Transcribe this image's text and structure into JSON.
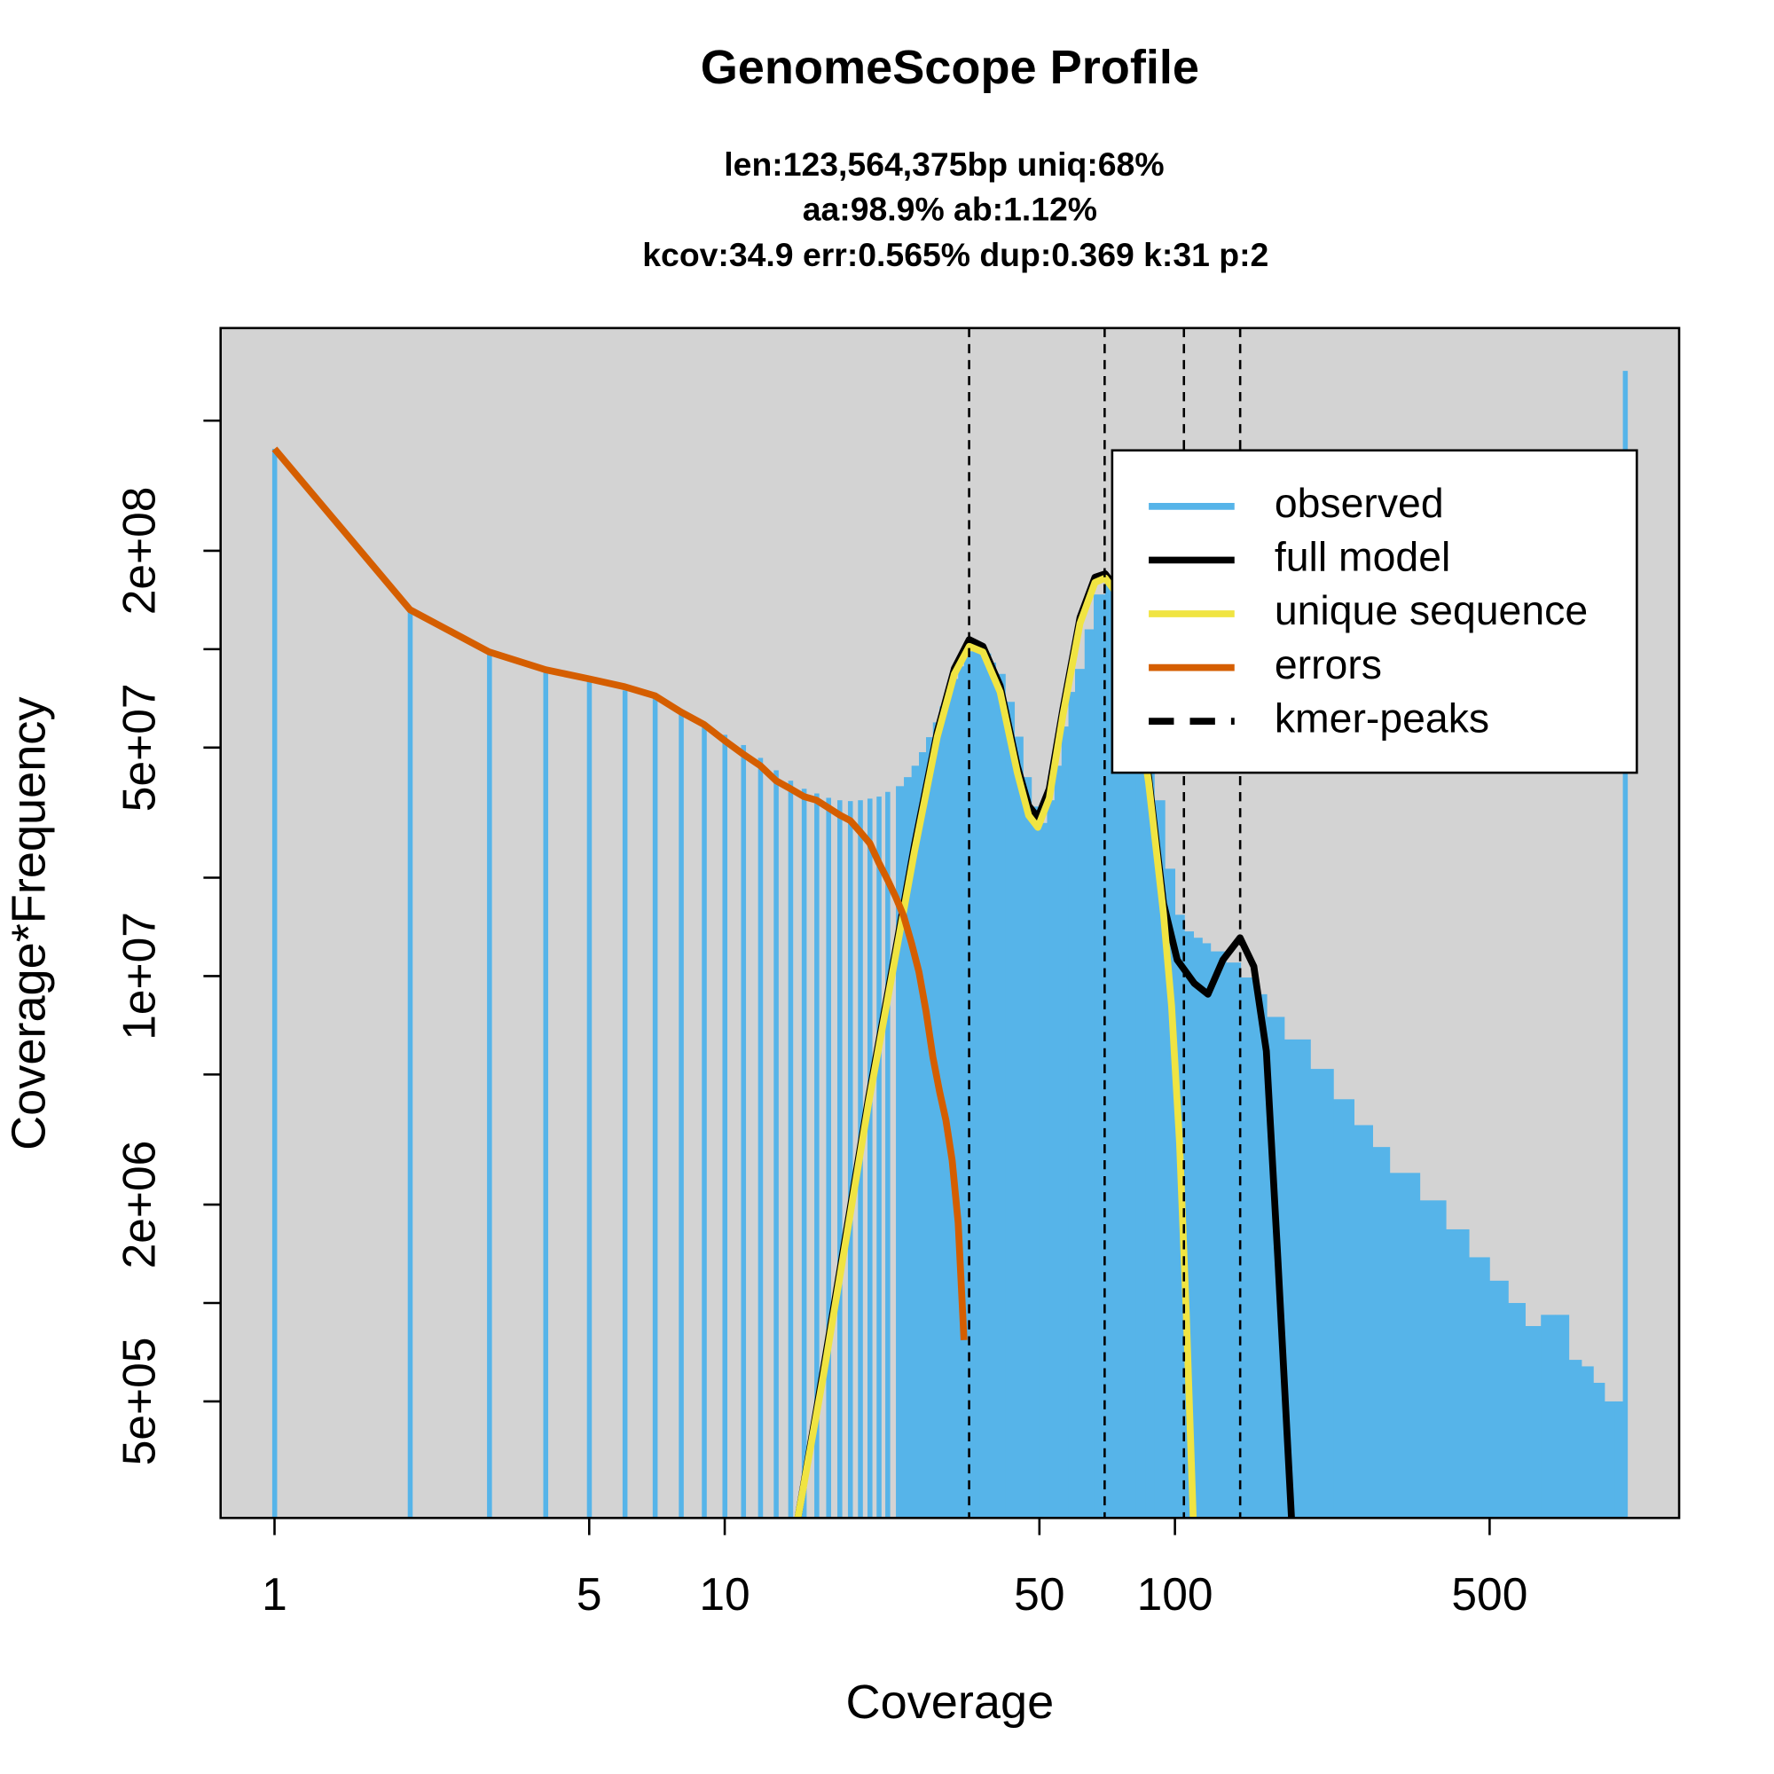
{
  "chart_data": {
    "type": "genomescope",
    "title": "GenomeScope Profile",
    "subtitle": [
      "len:123,564,375bp uniq:68%",
      "aa:98.9% ab:1.12%",
      "kcov:34.9 err:0.565%  dup:0.369  k:31 p:2"
    ],
    "xlabel": "Coverage",
    "ylabel": "Coverage*Frequency",
    "xscale": "log",
    "yscale": "log",
    "xlim": [
      0.759,
      1318
    ],
    "ylim": [
      220000,
      960000000
    ],
    "xticks": [
      1,
      5,
      10,
      50,
      100,
      500
    ],
    "yticks": [
      {
        "value": 500000,
        "label": "5e+05"
      },
      {
        "value": 2000000,
        "label": "2e+06"
      },
      {
        "value": 10000000,
        "label": "1e+07"
      },
      {
        "value": 50000000,
        "label": "5e+07"
      },
      {
        "value": 200000000,
        "label": "2e+08"
      }
    ],
    "yticks_unlabeled": [
      1000000,
      5000000,
      20000000,
      100000000,
      500000000
    ],
    "grid": false,
    "background": "#d3d3d3",
    "legend": "topright",
    "series": [
      {
        "name": "observed",
        "style": "bars",
        "color": "#56b4e9",
        "x": [
          1,
          2,
          3,
          4,
          5,
          6,
          7,
          8,
          9,
          10,
          11,
          12,
          13,
          14,
          15,
          16,
          17,
          18,
          19,
          20,
          21,
          22,
          23,
          24,
          25,
          26,
          27,
          28,
          29,
          30,
          31,
          32,
          33,
          34,
          35,
          36,
          37,
          38,
          39,
          40,
          42,
          44,
          46,
          48,
          50,
          52,
          54,
          56,
          58,
          60,
          63,
          66,
          70,
          74,
          78,
          82,
          86,
          90,
          95,
          100,
          105,
          110,
          115,
          120,
          130,
          140,
          150,
          160,
          175,
          200,
          225,
          250,
          275,
          300,
          350,
          400,
          450,
          500,
          550,
          600,
          650,
          700,
          750,
          800,
          850,
          900,
          950,
          999,
          1000
        ],
        "values": [
          410000000,
          132000000,
          98000000,
          86500000,
          79800000,
          74800000,
          70800000,
          64200000,
          59700000,
          54700000,
          50900000,
          46500000,
          42600000,
          39600000,
          37400000,
          36200000,
          35100000,
          34500000,
          34300000,
          34500000,
          34900000,
          35400000,
          36600000,
          38100000,
          40600000,
          44000000,
          48400000,
          53800000,
          59700000,
          66800000,
          73600000,
          81100000,
          88600000,
          94600000,
          98500000,
          100000000,
          100000000,
          97000000,
          91000000,
          84000000,
          69000000,
          54000000,
          40600000,
          33000000,
          29400000,
          34500000,
          44000000,
          58000000,
          74000000,
          87000000,
          115000000,
          147000000,
          166000000,
          162000000,
          130000000,
          87000000,
          56000000,
          34500000,
          21300000,
          15400000,
          13700000,
          13100000,
          12600000,
          11900000,
          11000000,
          9900000,
          8800000,
          7500000,
          6400000,
          5200000,
          4200000,
          3500000,
          3000000,
          2500000,
          2060000,
          1680000,
          1380000,
          1170000,
          1000000,
          850000,
          920000,
          920000,
          670000,
          640000,
          570000,
          500000,
          500000,
          410000,
          710000000
        ]
      },
      {
        "name": "full model",
        "style": "line",
        "color": "#000000",
        "x": [
          14.54,
          16.53,
          18.58,
          20.88,
          23.48,
          26.38,
          29.66,
          32.37,
          34.93,
          37.46,
          40.9,
          44.64,
          47.33,
          49.6,
          52.59,
          56.41,
          61.55,
          66.43,
          70.01,
          74.23,
          80.09,
          87.41,
          94.32,
          101.2,
          110.4,
          118.4,
          127.8,
          139.5,
          149.7,
          159.6,
          169.2,
          181.5
        ],
        "values": [
          220000,
          617000,
          1620000,
          4260000,
          10300000,
          25100000,
          56000000,
          87300000,
          107000000,
          102000000,
          77300000,
          44000000,
          33200000,
          30600000,
          37400000,
          65800000,
          125000000,
          166000000,
          170000000,
          153000000,
          90800000,
          40600000,
          16700000,
          11200000,
          9500000,
          8800000,
          11200000,
          13100000,
          10700000,
          5900000,
          1380000,
          220000
        ]
      },
      {
        "name": "unique sequence",
        "style": "line",
        "color": "#f0e442",
        "x": [
          14.54,
          16.53,
          18.58,
          20.88,
          23.48,
          26.38,
          29.66,
          32.37,
          34.93,
          37.46,
          40.9,
          44.64,
          47.33,
          49.6,
          52.59,
          56.41,
          61.55,
          66.43,
          70.01,
          74.23,
          80.09,
          87.41,
          94.32,
          98.3,
          102.4,
          106,
          109.8
        ],
        "values": [
          220000,
          590000,
          1550000,
          4100000,
          9900000,
          24000000,
          54000000,
          84000000,
          102000000,
          98000000,
          74000000,
          42000000,
          31000000,
          28500000,
          35000000,
          63000000,
          120000000,
          160000000,
          165000000,
          148000000,
          88000000,
          39000000,
          15500000,
          8100000,
          3090000,
          920000,
          220000
        ]
      },
      {
        "name": "errors",
        "style": "line",
        "color": "#d55e00",
        "x": [
          1,
          2,
          3,
          4,
          5,
          6,
          7,
          8,
          9,
          10,
          11,
          12,
          13,
          14,
          15,
          16,
          17,
          18,
          19,
          20,
          21,
          22,
          23,
          24,
          25,
          26,
          27,
          28,
          29,
          30,
          31,
          32,
          33,
          34
        ],
        "values": [
          410000000,
          132000000,
          98000000,
          86500000,
          81100000,
          76700000,
          72000000,
          64200000,
          58800000,
          52500000,
          47700000,
          44000000,
          39600000,
          37400000,
          35400000,
          34500000,
          32700000,
          31100000,
          29900000,
          27600000,
          25500000,
          22200000,
          19700000,
          17400000,
          15200000,
          12600000,
          10300000,
          7800000,
          5650000,
          4440000,
          3620000,
          2730000,
          1760000,
          770000
        ]
      },
      {
        "name": "kmer-peaks",
        "style": "vlines",
        "color": "#000000",
        "x": [
          34.9,
          69.8,
          104.7,
          139.6
        ]
      }
    ]
  }
}
